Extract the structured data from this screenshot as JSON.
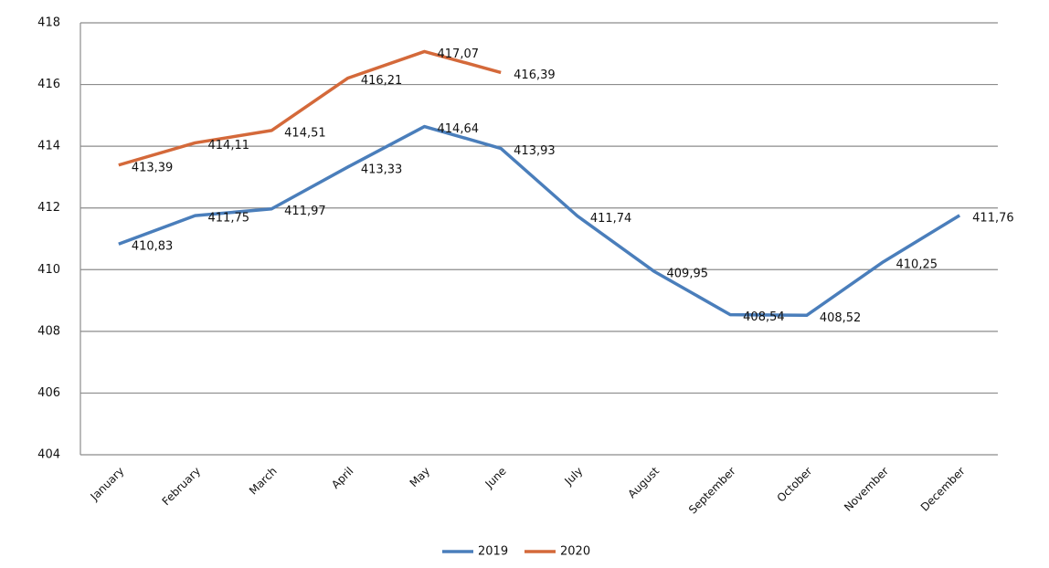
{
  "chart_data": {
    "type": "line",
    "categories": [
      "January",
      "February",
      "March",
      "April",
      "May",
      "June",
      "July",
      "August",
      "September",
      "October",
      "November",
      "December"
    ],
    "series": [
      {
        "name": "2019",
        "color": "#4a7ebb",
        "values": [
          410.83,
          411.75,
          411.97,
          413.33,
          414.64,
          413.93,
          411.74,
          409.95,
          408.54,
          408.52,
          410.25,
          411.76
        ],
        "value_labels": [
          "410,83",
          "411,75",
          "411,97",
          "413,33",
          "414,64",
          "413,93",
          "411,74",
          "409,95",
          "408,54",
          "408,52",
          "410,25",
          "411,76"
        ]
      },
      {
        "name": "2020",
        "color": "#d4693a",
        "values": [
          413.39,
          414.11,
          414.51,
          416.21,
          417.07,
          416.39,
          null,
          null,
          null,
          null,
          null,
          null
        ],
        "value_labels": [
          "413,39",
          "414,11",
          "414,51",
          "416,21",
          "417,07",
          "416,39",
          null,
          null,
          null,
          null,
          null,
          null
        ]
      }
    ],
    "ylim": [
      404,
      418
    ],
    "yticks": [
      404,
      406,
      408,
      410,
      412,
      414,
      416,
      418
    ],
    "grid": true,
    "legend": "bottom"
  }
}
